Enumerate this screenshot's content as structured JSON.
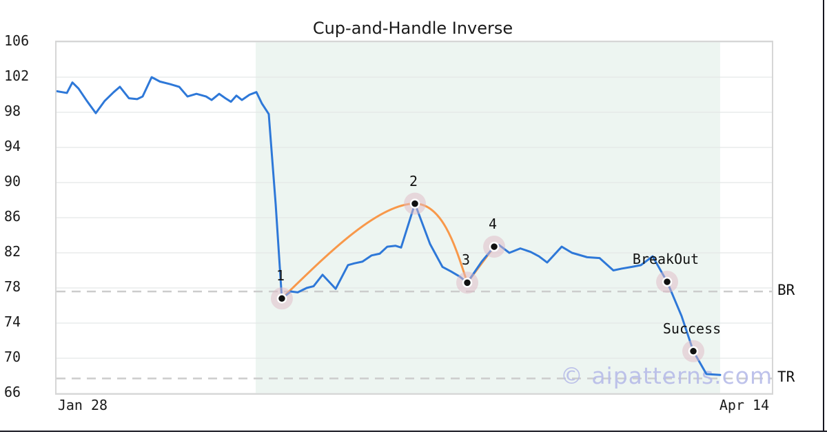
{
  "page": {
    "background": "#ffffff",
    "frame_color": "#15151f"
  },
  "chart_data": {
    "type": "line",
    "title": "Cup-and-Handle Inverse",
    "watermark": "© aipatterns.com",
    "ylim": [
      66,
      106
    ],
    "y_ticks": [
      106,
      102,
      98,
      94,
      90,
      86,
      82,
      78,
      74,
      70,
      66
    ],
    "x_tick_labels": [
      {
        "label": "Jan 28",
        "t": 0.0385
      },
      {
        "label": "Apr 14",
        "t": 0.9634
      }
    ],
    "grid": "horizontal",
    "shade": {
      "t0": 0.2784,
      "t1": 0.9277,
      "color": "#edf5f1"
    },
    "hlines": [
      {
        "label": "BR",
        "value": 77.6
      },
      {
        "label": "TR",
        "value": 67.7
      }
    ],
    "series": [
      {
        "name": "price",
        "color": "#2e78d8",
        "width": 3,
        "points": [
          [
            0.0,
            100.4
          ],
          [
            0.0145,
            100.2
          ],
          [
            0.0222,
            101.4
          ],
          [
            0.0308,
            100.7
          ],
          [
            0.0424,
            99.3
          ],
          [
            0.0549,
            97.9
          ],
          [
            0.0674,
            99.3
          ],
          [
            0.08,
            100.3
          ],
          [
            0.0886,
            100.9
          ],
          [
            0.1012,
            99.6
          ],
          [
            0.1127,
            99.5
          ],
          [
            0.1204,
            99.8
          ],
          [
            0.133,
            102.0
          ],
          [
            0.1445,
            101.5
          ],
          [
            0.159,
            101.2
          ],
          [
            0.1715,
            100.9
          ],
          [
            0.1831,
            99.8
          ],
          [
            0.1956,
            100.1
          ],
          [
            0.2091,
            99.8
          ],
          [
            0.2168,
            99.4
          ],
          [
            0.2274,
            100.1
          ],
          [
            0.2361,
            99.6
          ],
          [
            0.2438,
            99.2
          ],
          [
            0.2515,
            99.9
          ],
          [
            0.2592,
            99.4
          ],
          [
            0.2698,
            100.0
          ],
          [
            0.2794,
            100.3
          ],
          [
            0.2871,
            99.0
          ],
          [
            0.2967,
            97.8
          ],
          [
            0.3064,
            87.5
          ],
          [
            0.315,
            76.8
          ],
          [
            0.3276,
            77.6
          ],
          [
            0.3372,
            77.5
          ],
          [
            0.3497,
            78.0
          ],
          [
            0.3594,
            78.2
          ],
          [
            0.3719,
            79.5
          ],
          [
            0.3902,
            77.9
          ],
          [
            0.4075,
            80.6
          ],
          [
            0.4162,
            80.8
          ],
          [
            0.4277,
            81.0
          ],
          [
            0.4403,
            81.7
          ],
          [
            0.4518,
            81.9
          ],
          [
            0.4624,
            82.7
          ],
          [
            0.474,
            82.8
          ],
          [
            0.4817,
            82.6
          ],
          [
            0.501,
            87.6
          ],
          [
            0.5222,
            83.0
          ],
          [
            0.5395,
            80.4
          ],
          [
            0.5511,
            79.9
          ],
          [
            0.5636,
            79.3
          ],
          [
            0.5742,
            78.6
          ],
          [
            0.5944,
            81.0
          ],
          [
            0.6118,
            82.7
          ],
          [
            0.6185,
            82.9
          ],
          [
            0.633,
            82.0
          ],
          [
            0.6484,
            82.5
          ],
          [
            0.6628,
            82.1
          ],
          [
            0.6744,
            81.6
          ],
          [
            0.6859,
            80.9
          ],
          [
            0.7062,
            82.7
          ],
          [
            0.7206,
            82.0
          ],
          [
            0.7418,
            81.5
          ],
          [
            0.7592,
            81.4
          ],
          [
            0.7784,
            80.0
          ],
          [
            0.79,
            80.2
          ],
          [
            0.8044,
            80.4
          ],
          [
            0.817,
            80.6
          ],
          [
            0.8333,
            81.6
          ],
          [
            0.8536,
            78.7
          ],
          [
            0.8738,
            74.8
          ],
          [
            0.8902,
            70.8
          ],
          [
            0.9085,
            68.2
          ],
          [
            0.9277,
            68.1
          ]
        ]
      },
      {
        "name": "pattern",
        "color": "#f8984a",
        "width": 3,
        "points": [
          [
            0.315,
            76.8
          ],
          [
            0.501,
            87.6
          ],
          [
            0.5742,
            78.6
          ],
          [
            0.6118,
            82.7
          ]
        ]
      }
    ],
    "markers": [
      {
        "label": "1",
        "t": 0.315,
        "value": 76.8
      },
      {
        "label": "2",
        "t": 0.501,
        "value": 87.6
      },
      {
        "label": "3",
        "t": 0.5742,
        "value": 78.6
      },
      {
        "label": "4",
        "t": 0.6118,
        "value": 82.7
      },
      {
        "label": "BreakOut",
        "t": 0.8536,
        "value": 78.7
      },
      {
        "label": "Success",
        "t": 0.8902,
        "value": 70.8
      }
    ],
    "colors": {
      "grid": "#e4e6e7",
      "dash": "#cccccc",
      "border": "#d6d6d6",
      "text": "#1a1a1a",
      "halo": "rgba(224,186,197,0.5)",
      "dot": "#111111",
      "dot_ring": "#ffffff",
      "watermark": "#b7bce9"
    }
  }
}
